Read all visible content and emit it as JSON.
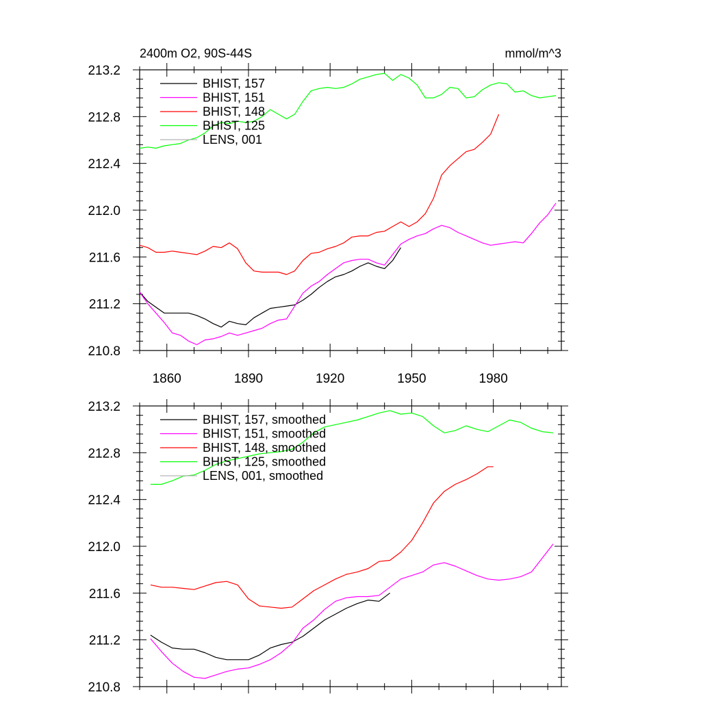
{
  "chart_data": [
    {
      "type": "line",
      "title": "2400m O2, 90S-44S",
      "units": "mmol/m^3",
      "xlim": [
        1850,
        2005
      ],
      "ylim": [
        210.8,
        213.2
      ],
      "x_ticks": [
        1860,
        1890,
        1920,
        1950,
        1980
      ],
      "x_tick_labels": [
        "1860",
        "1890",
        "1920",
        "1950",
        "1980"
      ],
      "y_ticks": [
        210.8,
        211.2,
        211.6,
        212.0,
        212.4,
        212.8,
        213.2
      ],
      "y_tick_labels": [
        "210.8",
        "211.2",
        "211.6",
        "212.0",
        "212.4",
        "212.8",
        "213.2"
      ],
      "legend_position": "top-left",
      "series": [
        {
          "name": "BHIST, 157",
          "color": "#000000",
          "x": [
            1850,
            1853,
            1856,
            1859,
            1862,
            1865,
            1868,
            1871,
            1874,
            1877,
            1880,
            1883,
            1886,
            1889,
            1892,
            1895,
            1898,
            1901,
            1904,
            1907,
            1910,
            1913,
            1916,
            1919,
            1922,
            1925,
            1928,
            1931,
            1934,
            1937,
            1940,
            1943,
            1946
          ],
          "y": [
            211.3,
            211.22,
            211.17,
            211.12,
            211.12,
            211.12,
            211.12,
            211.1,
            211.07,
            211.03,
            211.0,
            211.05,
            211.03,
            211.02,
            211.08,
            211.12,
            211.16,
            211.17,
            211.18,
            211.19,
            211.23,
            211.28,
            211.34,
            211.39,
            211.43,
            211.45,
            211.48,
            211.52,
            211.55,
            211.52,
            211.5,
            211.57,
            211.68
          ]
        },
        {
          "name": "BHIST, 151",
          "color": "#ff00ff",
          "x": [
            1850,
            1853,
            1856,
            1859,
            1862,
            1865,
            1868,
            1871,
            1874,
            1877,
            1880,
            1883,
            1886,
            1889,
            1892,
            1895,
            1898,
            1901,
            1904,
            1907,
            1910,
            1913,
            1916,
            1919,
            1922,
            1925,
            1928,
            1931,
            1934,
            1937,
            1940,
            1943,
            1946,
            1949,
            1952,
            1955,
            1958,
            1961,
            1964,
            1967,
            1970,
            1973,
            1976,
            1979,
            1982,
            1985,
            1988,
            1991,
            1994,
            1997,
            2000,
            2003
          ],
          "y": [
            211.3,
            211.2,
            211.12,
            211.04,
            210.95,
            210.93,
            210.88,
            210.85,
            210.89,
            210.9,
            210.92,
            210.95,
            210.93,
            210.95,
            210.97,
            210.99,
            211.03,
            211.06,
            211.07,
            211.18,
            211.29,
            211.35,
            211.39,
            211.45,
            211.5,
            211.55,
            211.57,
            211.58,
            211.58,
            211.55,
            211.53,
            211.62,
            211.71,
            211.75,
            211.78,
            211.8,
            211.84,
            211.87,
            211.85,
            211.81,
            211.78,
            211.75,
            211.72,
            211.7,
            211.71,
            211.72,
            211.73,
            211.72,
            211.8,
            211.89,
            211.96,
            212.06
          ]
        },
        {
          "name": "BHIST, 148",
          "color": "#ff0000",
          "x": [
            1850,
            1853,
            1856,
            1859,
            1862,
            1865,
            1868,
            1871,
            1874,
            1877,
            1880,
            1883,
            1886,
            1889,
            1892,
            1895,
            1898,
            1901,
            1904,
            1907,
            1910,
            1913,
            1916,
            1919,
            1922,
            1925,
            1928,
            1931,
            1934,
            1937,
            1940,
            1943,
            1946,
            1949,
            1952,
            1955,
            1958,
            1961,
            1964,
            1967,
            1970,
            1973,
            1976,
            1979,
            1982
          ],
          "y": [
            211.7,
            211.68,
            211.64,
            211.64,
            211.65,
            211.64,
            211.63,
            211.62,
            211.65,
            211.69,
            211.68,
            211.72,
            211.67,
            211.55,
            211.48,
            211.47,
            211.47,
            211.47,
            211.45,
            211.48,
            211.57,
            211.63,
            211.64,
            211.67,
            211.69,
            211.72,
            211.77,
            211.78,
            211.78,
            211.81,
            211.82,
            211.86,
            211.9,
            211.86,
            211.9,
            211.97,
            212.1,
            212.3,
            212.38,
            212.44,
            212.5,
            212.52,
            212.58,
            212.65,
            212.82
          ]
        },
        {
          "name": "BHIST, 125",
          "color": "#00ff00",
          "x": [
            1850,
            1853,
            1856,
            1859,
            1862,
            1865,
            1868,
            1871,
            1874,
            1877,
            1880,
            1883,
            1886,
            1889,
            1892,
            1895,
            1898,
            1901,
            1904,
            1907,
            1910,
            1913,
            1916,
            1919,
            1922,
            1925,
            1928,
            1931,
            1934,
            1937,
            1940,
            1943,
            1946,
            1949,
            1952,
            1955,
            1958,
            1961,
            1964,
            1967,
            1970,
            1973,
            1976,
            1979,
            1982,
            1985,
            1988,
            1991,
            1994,
            1997,
            2000,
            2003
          ],
          "y": [
            212.53,
            212.54,
            212.53,
            212.55,
            212.56,
            212.57,
            212.6,
            212.62,
            212.66,
            212.72,
            212.75,
            212.74,
            212.76,
            212.75,
            212.76,
            212.8,
            212.86,
            212.82,
            212.78,
            212.82,
            212.93,
            213.02,
            213.04,
            213.05,
            213.04,
            213.05,
            213.08,
            213.12,
            213.14,
            213.16,
            213.17,
            213.11,
            213.16,
            213.13,
            213.07,
            212.96,
            212.96,
            212.99,
            213.05,
            213.04,
            212.96,
            212.97,
            213.03,
            213.07,
            213.09,
            213.08,
            213.01,
            213.02,
            212.98,
            212.96,
            212.97,
            212.98
          ]
        }
      ]
    },
    {
      "type": "line",
      "xlim": [
        1850,
        2005
      ],
      "ylim": [
        210.8,
        213.2
      ],
      "y_ticks": [
        210.8,
        211.2,
        211.6,
        212.0,
        212.4,
        212.8,
        213.2
      ],
      "y_tick_labels": [
        "210.8",
        "211.2",
        "211.6",
        "212.0",
        "212.4",
        "212.8",
        "213.2"
      ],
      "legend_position": "top-left",
      "series": [
        {
          "name": "BHIST, 157, smoothed",
          "color": "#000000",
          "x": [
            1854,
            1858,
            1862,
            1866,
            1870,
            1874,
            1878,
            1882,
            1886,
            1890,
            1894,
            1898,
            1902,
            1906,
            1910,
            1914,
            1918,
            1922,
            1926,
            1930,
            1934,
            1938,
            1942
          ],
          "y": [
            211.24,
            211.18,
            211.13,
            211.12,
            211.12,
            211.09,
            211.05,
            211.03,
            211.03,
            211.03,
            211.07,
            211.13,
            211.16,
            211.18,
            211.23,
            211.3,
            211.37,
            211.42,
            211.47,
            211.51,
            211.54,
            211.53,
            211.6
          ]
        },
        {
          "name": "BHIST, 151, smoothed",
          "color": "#ff00ff",
          "x": [
            1854,
            1858,
            1862,
            1866,
            1870,
            1874,
            1878,
            1882,
            1886,
            1890,
            1894,
            1898,
            1902,
            1906,
            1910,
            1914,
            1918,
            1922,
            1926,
            1930,
            1934,
            1938,
            1942,
            1946,
            1950,
            1954,
            1958,
            1962,
            1966,
            1970,
            1974,
            1978,
            1982,
            1986,
            1990,
            1994,
            1998,
            2002
          ],
          "y": [
            211.21,
            211.1,
            211.0,
            210.93,
            210.88,
            210.87,
            210.9,
            210.93,
            210.95,
            210.96,
            210.99,
            211.03,
            211.09,
            211.17,
            211.3,
            211.37,
            211.46,
            211.53,
            211.56,
            211.57,
            211.57,
            211.58,
            211.65,
            211.72,
            211.75,
            211.78,
            211.84,
            211.86,
            211.83,
            211.79,
            211.75,
            211.72,
            211.71,
            211.72,
            211.74,
            211.78,
            211.9,
            212.02
          ]
        },
        {
          "name": "BHIST, 148, smoothed",
          "color": "#ff0000",
          "x": [
            1854,
            1858,
            1862,
            1866,
            1870,
            1874,
            1878,
            1882,
            1886,
            1890,
            1894,
            1898,
            1902,
            1906,
            1910,
            1914,
            1918,
            1922,
            1926,
            1930,
            1934,
            1938,
            1942,
            1946,
            1950,
            1954,
            1958,
            1962,
            1966,
            1970,
            1974,
            1978,
            1980
          ],
          "y": [
            211.67,
            211.65,
            211.65,
            211.64,
            211.63,
            211.66,
            211.69,
            211.7,
            211.67,
            211.55,
            211.49,
            211.48,
            211.47,
            211.48,
            211.55,
            211.62,
            211.67,
            211.72,
            211.76,
            211.78,
            211.81,
            211.87,
            211.88,
            211.95,
            212.05,
            212.2,
            212.37,
            212.47,
            212.53,
            212.57,
            212.62,
            212.68,
            212.68
          ]
        },
        {
          "name": "BHIST, 125, smoothed",
          "color": "#00ff00",
          "x": [
            1854,
            1858,
            1862,
            1866,
            1870,
            1874,
            1878,
            1882,
            1886,
            1890,
            1894,
            1898,
            1902,
            1906,
            1910,
            1914,
            1918,
            1922,
            1926,
            1930,
            1934,
            1938,
            1942,
            1946,
            1950,
            1954,
            1958,
            1962,
            1966,
            1970,
            1974,
            1978,
            1982,
            1986,
            1990,
            1994,
            1998,
            2002
          ],
          "y": [
            212.53,
            212.53,
            212.56,
            212.6,
            212.61,
            212.65,
            212.7,
            212.73,
            212.75,
            212.77,
            212.79,
            212.8,
            212.81,
            212.83,
            212.89,
            212.97,
            213.02,
            213.04,
            213.06,
            213.08,
            213.11,
            213.14,
            213.16,
            213.13,
            213.14,
            213.11,
            213.03,
            212.97,
            212.99,
            213.03,
            213.0,
            212.98,
            213.03,
            213.08,
            213.06,
            213.01,
            212.98,
            212.97
          ]
        }
      ]
    }
  ],
  "legend_extra": [
    {
      "label": "LENS, 001",
      "color": "#b3b3b3"
    },
    {
      "label": "LENS, 001, smoothed",
      "color": "#b3b3b3"
    }
  ]
}
